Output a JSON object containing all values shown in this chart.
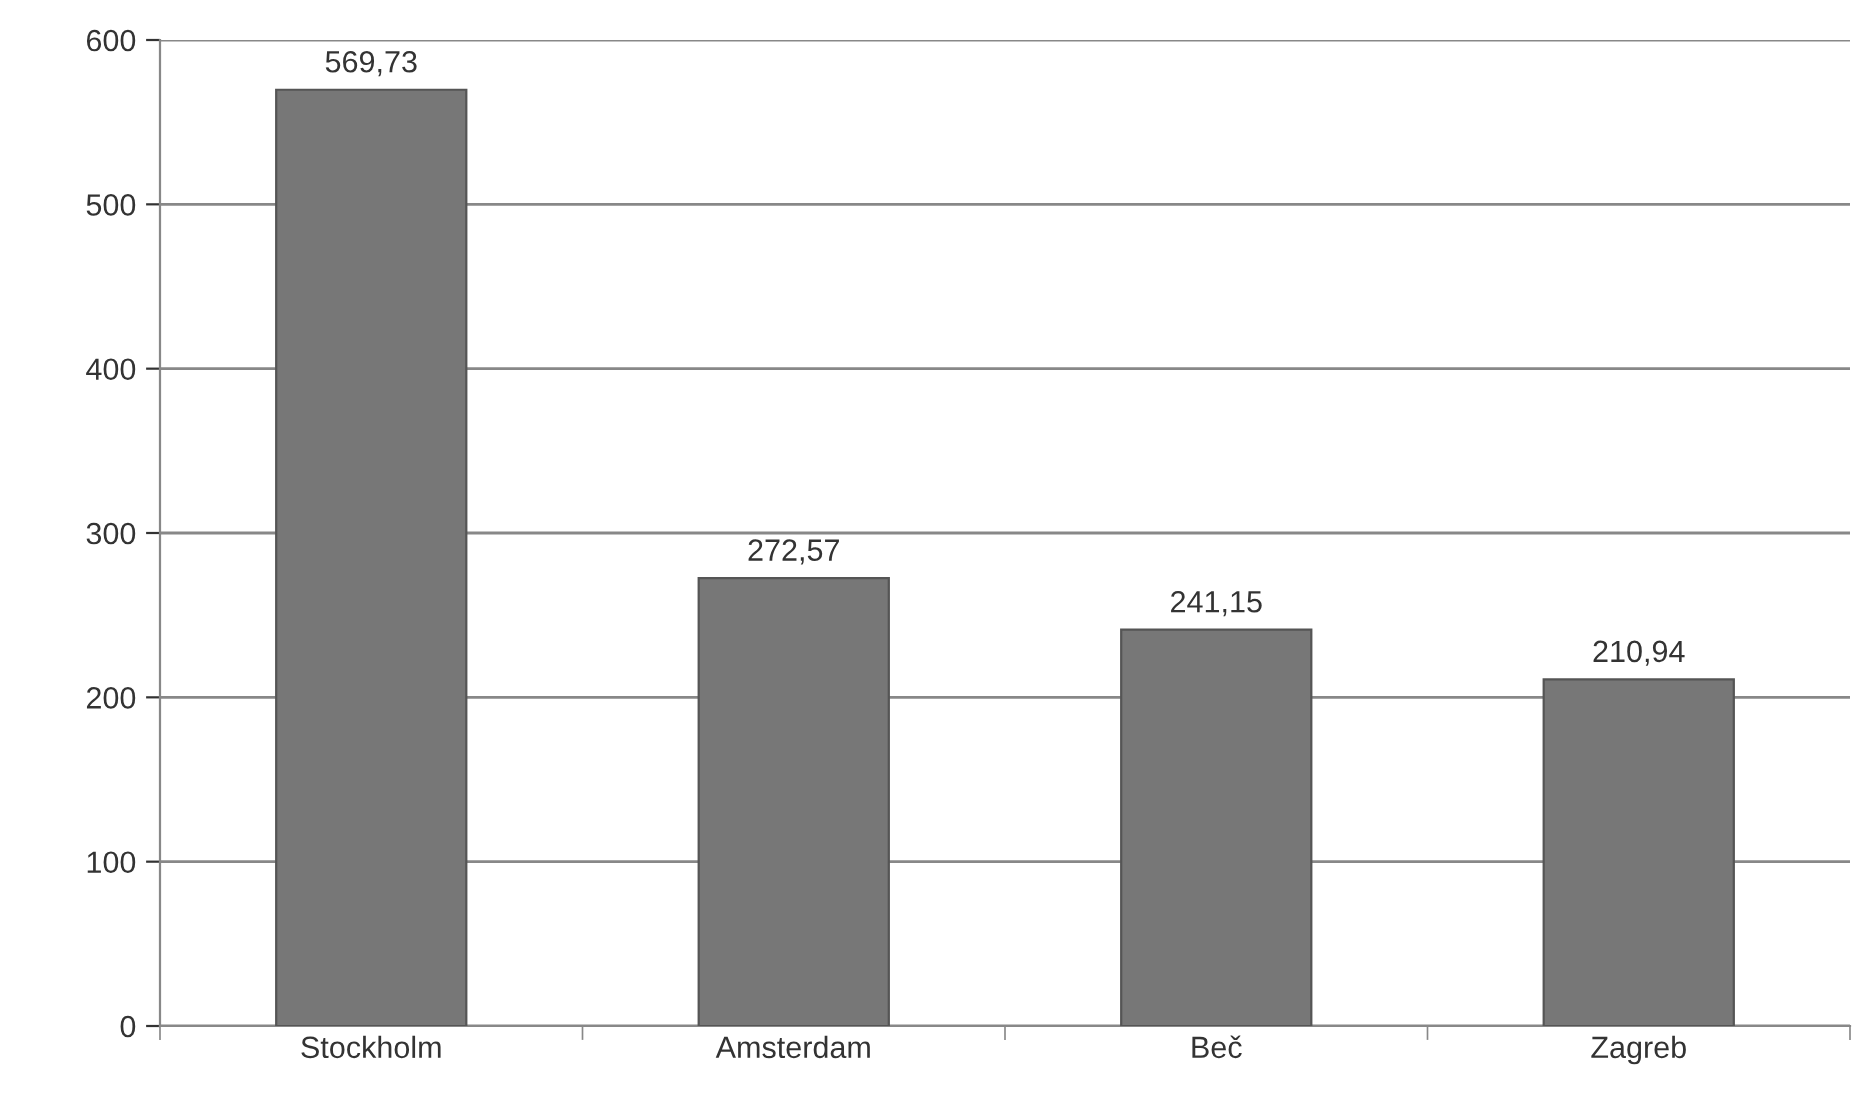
{
  "chart_data": {
    "type": "bar",
    "categories": [
      "Stockholm",
      "Amsterdam",
      "Beč",
      "Zagreb"
    ],
    "values": [
      569.73,
      272.57,
      241.15,
      210.94
    ],
    "value_labels": [
      "569,73",
      "272,57",
      "241,15",
      "210,94"
    ],
    "color": "#777777",
    "ylim": [
      0,
      600
    ],
    "yticks": [
      0,
      100,
      200,
      300,
      400,
      500,
      600
    ],
    "grid": "y",
    "legend": false
  }
}
